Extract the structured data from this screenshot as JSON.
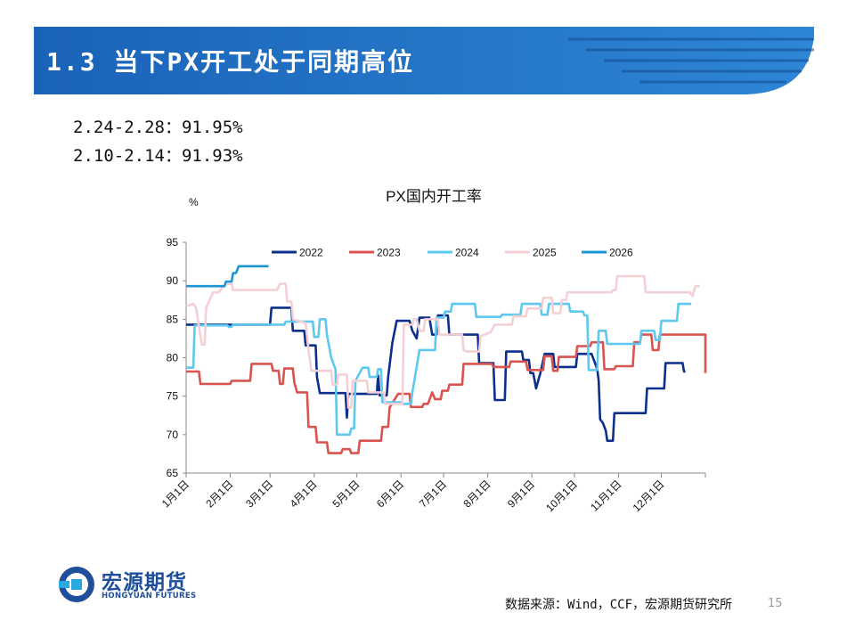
{
  "header": {
    "title": "1.3 当下PX开工处于同期高位"
  },
  "stats": [
    {
      "text": "2.24-2.28：91.95%"
    },
    {
      "text": "2.10-2.14：91.93%"
    }
  ],
  "footer": {
    "source": "数据来源：Wind，CCF，宏源期货研究所",
    "page": "15"
  },
  "logo": {
    "cn": "宏源期货",
    "en": "HONGYUAN FUTURES"
  },
  "colors": {
    "banner": "#1f6fbf",
    "brand": "#1f4e9a"
  },
  "chart_data": {
    "type": "line",
    "title": "PX国内开工率",
    "ylabel": "%",
    "xlabel": "",
    "ylim": [
      65,
      95
    ],
    "yticks": [
      65,
      70,
      75,
      80,
      85,
      90,
      95
    ],
    "xlim": [
      1,
      366
    ],
    "categories": [
      "1月1日",
      "2月1日",
      "3月1日",
      "4月1日",
      "5月1日",
      "6月1日",
      "7月1日",
      "8月1日",
      "9月1日",
      "10月1日",
      "11月1日",
      "12月1日"
    ],
    "category_days": [
      1,
      32,
      60,
      91,
      121,
      152,
      182,
      213,
      244,
      274,
      305,
      335
    ],
    "legend_position": "top",
    "series": [
      {
        "name": "2022",
        "color": "#0d2f8c",
        "points": [
          [
            1,
            84.3
          ],
          [
            60,
            84.3
          ],
          [
            61,
            86.5
          ],
          [
            75,
            86.5
          ],
          [
            76,
            83.5
          ],
          [
            84,
            83.5
          ],
          [
            85,
            81.6
          ],
          [
            92,
            81.6
          ],
          [
            93,
            77.5
          ],
          [
            95,
            75.4
          ],
          [
            113,
            75.4
          ],
          [
            114,
            72.2
          ],
          [
            115,
            75.3
          ],
          [
            135,
            75.3
          ],
          [
            136,
            77.7
          ],
          [
            137,
            75.1
          ],
          [
            142,
            75.1
          ],
          [
            143,
            77.5
          ],
          [
            146,
            82.0
          ],
          [
            149,
            84.8
          ],
          [
            158,
            84.8
          ],
          [
            160,
            83.5
          ],
          [
            163,
            82.5
          ],
          [
            165,
            85.2
          ],
          [
            172,
            85.2
          ],
          [
            174,
            83.0
          ],
          [
            177,
            83.0
          ],
          [
            178,
            85.5
          ],
          [
            185,
            85.5
          ],
          [
            186,
            83.0
          ],
          [
            206,
            83.0
          ],
          [
            207,
            79.3
          ],
          [
            217,
            79.3
          ],
          [
            218,
            74.5
          ],
          [
            225,
            74.5
          ],
          [
            226,
            80.8
          ],
          [
            237,
            80.8
          ],
          [
            238,
            79.7
          ],
          [
            242,
            79.7
          ],
          [
            243,
            78.0
          ],
          [
            245,
            78.0
          ],
          [
            247,
            76.0
          ],
          [
            250,
            78.0
          ],
          [
            253,
            80.5
          ],
          [
            259,
            80.5
          ],
          [
            260,
            78.8
          ],
          [
            275,
            78.8
          ],
          [
            276,
            80.5
          ],
          [
            286,
            80.5
          ],
          [
            290,
            78.5
          ],
          [
            291,
            77.0
          ],
          [
            292,
            72.0
          ],
          [
            294,
            71.5
          ],
          [
            296,
            70.5
          ],
          [
            297,
            69.2
          ],
          [
            301,
            69.2
          ],
          [
            302,
            72.8
          ],
          [
            324,
            72.8
          ],
          [
            325,
            76.0
          ],
          [
            337,
            76.0
          ],
          [
            338,
            79.3
          ],
          [
            350,
            79.3
          ],
          [
            351,
            78.2
          ],
          [
            352,
            78.2
          ]
        ]
      },
      {
        "name": "2023",
        "color": "#d9534f",
        "points": [
          [
            1,
            78.2
          ],
          [
            10,
            78.2
          ],
          [
            11,
            76.6
          ],
          [
            32,
            76.6
          ],
          [
            33,
            77.0
          ],
          [
            46,
            77.0
          ],
          [
            47,
            79.2
          ],
          [
            61,
            79.2
          ],
          [
            62,
            78.3
          ],
          [
            66,
            78.3
          ],
          [
            67,
            76.6
          ],
          [
            69,
            76.6
          ],
          [
            70,
            78.6
          ],
          [
            76,
            78.6
          ],
          [
            77,
            76.8
          ],
          [
            79,
            75.5
          ],
          [
            86,
            75.5
          ],
          [
            87,
            71.0
          ],
          [
            92,
            71.0
          ],
          [
            93,
            69.0
          ],
          [
            100,
            69.0
          ],
          [
            101,
            67.6
          ],
          [
            110,
            67.6
          ],
          [
            111,
            68.1
          ],
          [
            116,
            68.1
          ],
          [
            117,
            67.6
          ],
          [
            122,
            67.6
          ],
          [
            123,
            69.2
          ],
          [
            138,
            69.2
          ],
          [
            139,
            71.0
          ],
          [
            143,
            71.0
          ],
          [
            144,
            73.5
          ],
          [
            150,
            75.3
          ],
          [
            158,
            75.3
          ],
          [
            159,
            73.6
          ],
          [
            167,
            73.6
          ],
          [
            168,
            74.0
          ],
          [
            171,
            74.0
          ],
          [
            174,
            75.5
          ],
          [
            176,
            74.6
          ],
          [
            180,
            74.6
          ],
          [
            181,
            75.7
          ],
          [
            185,
            75.7
          ],
          [
            186,
            76.5
          ],
          [
            195,
            76.5
          ],
          [
            196,
            79.2
          ],
          [
            216,
            79.2
          ],
          [
            217,
            78.8
          ],
          [
            228,
            78.8
          ],
          [
            229,
            79.5
          ],
          [
            240,
            79.5
          ],
          [
            241,
            78.4
          ],
          [
            252,
            78.4
          ],
          [
            253,
            80.2
          ],
          [
            258,
            80.2
          ],
          [
            259,
            78.3
          ],
          [
            262,
            78.3
          ],
          [
            263,
            80.1
          ],
          [
            275,
            80.1
          ],
          [
            276,
            81.5
          ],
          [
            285,
            81.5
          ],
          [
            286,
            82.0
          ],
          [
            294,
            82.0
          ],
          [
            295,
            78.5
          ],
          [
            302,
            78.5
          ],
          [
            303,
            78.9
          ],
          [
            315,
            78.9
          ],
          [
            316,
            82.0
          ],
          [
            320,
            82.0
          ],
          [
            321,
            83.0
          ],
          [
            328,
            83.0
          ],
          [
            329,
            81.0
          ],
          [
            333,
            81.0
          ],
          [
            334,
            83.0
          ],
          [
            366,
            83.0
          ],
          [
            366,
            78.0
          ]
        ]
      },
      {
        "name": "2024",
        "color": "#5ec8ef",
        "points": [
          [
            1,
            78.7
          ],
          [
            6,
            78.7
          ],
          [
            7,
            84.2
          ],
          [
            30,
            84.2
          ],
          [
            31,
            84.0
          ],
          [
            33,
            84.0
          ],
          [
            34,
            84.3
          ],
          [
            70,
            84.3
          ],
          [
            71,
            84.7
          ],
          [
            90,
            84.7
          ],
          [
            91,
            82.7
          ],
          [
            94,
            82.7
          ],
          [
            95,
            85.0
          ],
          [
            99,
            85.0
          ],
          [
            100,
            83.0
          ],
          [
            103,
            80.0
          ],
          [
            106,
            78.5
          ],
          [
            107,
            70.0
          ],
          [
            116,
            70.0
          ],
          [
            117,
            70.8
          ],
          [
            119,
            70.8
          ],
          [
            120,
            77.0
          ],
          [
            125,
            78.7
          ],
          [
            129,
            78.7
          ],
          [
            130,
            77.5
          ],
          [
            135,
            77.5
          ],
          [
            136,
            78.5
          ],
          [
            138,
            78.5
          ],
          [
            139,
            74.2
          ],
          [
            152,
            74.2
          ],
          [
            153,
            74.0
          ],
          [
            159,
            74.0
          ],
          [
            160,
            75.5
          ],
          [
            165,
            81.0
          ],
          [
            176,
            81.0
          ],
          [
            177,
            85.2
          ],
          [
            182,
            85.2
          ],
          [
            183,
            86.0
          ],
          [
            187,
            86.0
          ],
          [
            188,
            87.0
          ],
          [
            204,
            87.0
          ],
          [
            205,
            85.3
          ],
          [
            222,
            85.3
          ],
          [
            223,
            85.6
          ],
          [
            236,
            85.6
          ],
          [
            237,
            87.0
          ],
          [
            250,
            87.0
          ],
          [
            251,
            85.6
          ],
          [
            255,
            85.6
          ],
          [
            256,
            87.0
          ],
          [
            270,
            87.0
          ],
          [
            271,
            86.0
          ],
          [
            280,
            86.0
          ],
          [
            281,
            85.5
          ],
          [
            283,
            85.5
          ],
          [
            284,
            78.4
          ],
          [
            290,
            78.4
          ],
          [
            291,
            83.5
          ],
          [
            296,
            83.5
          ],
          [
            297,
            81.8
          ],
          [
            320,
            81.8
          ],
          [
            321,
            83.5
          ],
          [
            330,
            83.5
          ],
          [
            331,
            82.3
          ],
          [
            334,
            82.3
          ],
          [
            335,
            84.8
          ],
          [
            346,
            84.8
          ],
          [
            347,
            87.0
          ],
          [
            356,
            87.0
          ]
        ]
      },
      {
        "name": "2025",
        "color": "#f4cfd3",
        "points": [
          [
            1,
            86.7
          ],
          [
            6,
            87.0
          ],
          [
            8,
            86.5
          ],
          [
            10,
            84.0
          ],
          [
            12,
            81.7
          ],
          [
            14,
            81.7
          ],
          [
            15,
            86.5
          ],
          [
            20,
            88.5
          ],
          [
            24,
            88.5
          ],
          [
            26,
            89.0
          ],
          [
            29,
            89.6
          ],
          [
            33,
            89.6
          ],
          [
            34,
            88.8
          ],
          [
            65,
            88.8
          ],
          [
            67,
            89.6
          ],
          [
            71,
            89.6
          ],
          [
            72,
            87.3
          ],
          [
            75,
            87.3
          ],
          [
            76,
            85.0
          ],
          [
            85,
            84.5
          ],
          [
            87,
            81.0
          ],
          [
            89,
            78.3
          ],
          [
            103,
            78.3
          ],
          [
            104,
            76.5
          ],
          [
            107,
            76.5
          ],
          [
            108,
            77.8
          ],
          [
            114,
            77.8
          ],
          [
            115,
            73.5
          ],
          [
            117,
            73.5
          ],
          [
            118,
            77.0
          ],
          [
            128,
            77.0
          ],
          [
            129,
            75.5
          ],
          [
            140,
            75.5
          ],
          [
            141,
            74.0
          ],
          [
            153,
            74.0
          ],
          [
            154,
            84.3
          ],
          [
            160,
            84.3
          ],
          [
            161,
            85.0
          ],
          [
            163,
            85.0
          ],
          [
            165,
            83.5
          ],
          [
            168,
            83.5
          ],
          [
            169,
            85.0
          ],
          [
            178,
            85.0
          ],
          [
            179,
            83.0
          ],
          [
            195,
            83.0
          ],
          [
            196,
            81.0
          ],
          [
            198,
            80.8
          ],
          [
            207,
            80.8
          ],
          [
            208,
            82.8
          ],
          [
            215,
            83.3
          ],
          [
            218,
            84.3
          ],
          [
            230,
            84.3
          ],
          [
            231,
            85.4
          ],
          [
            240,
            85.4
          ],
          [
            241,
            86.4
          ],
          [
            251,
            86.4
          ],
          [
            252,
            87.8
          ],
          [
            258,
            87.8
          ],
          [
            259,
            85.8
          ],
          [
            264,
            85.8
          ],
          [
            265,
            87.5
          ],
          [
            268,
            87.5
          ],
          [
            269,
            88.5
          ],
          [
            280,
            88.5
          ],
          [
            281,
            88.5
          ],
          [
            300,
            88.5
          ],
          [
            301,
            88.8
          ],
          [
            303,
            88.8
          ],
          [
            304,
            90.6
          ],
          [
            323,
            90.6
          ],
          [
            324,
            88.5
          ],
          [
            355,
            88.5
          ],
          [
            357,
            88.0
          ],
          [
            359,
            89.3
          ],
          [
            362,
            89.3
          ]
        ]
      },
      {
        "name": "2026",
        "color": "#1c95d6",
        "points": [
          [
            1,
            89.3
          ],
          [
            28,
            89.3
          ],
          [
            29,
            89.9
          ],
          [
            33,
            89.9
          ],
          [
            34,
            91.0
          ],
          [
            36,
            91.0
          ],
          [
            38,
            91.9
          ],
          [
            59,
            91.9
          ]
        ]
      }
    ]
  }
}
